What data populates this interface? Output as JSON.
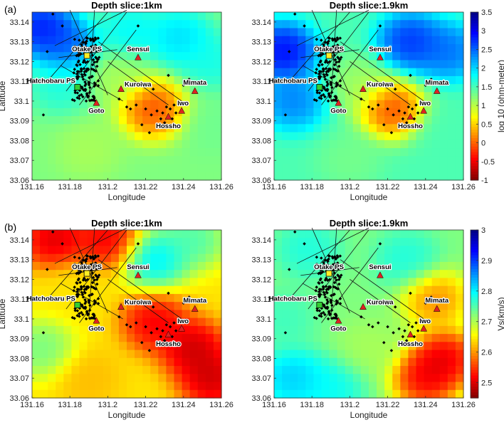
{
  "figure": {
    "panel_labels": [
      "(a)",
      "(b)"
    ]
  },
  "chart_data": [
    {
      "type": "heatmap",
      "panel": "(a)",
      "title": "Depth slice:1km",
      "xlabel": "Longitude",
      "ylabel": "Latitude",
      "xlim": [
        131.16,
        131.26
      ],
      "ylim": [
        33.06,
        33.145
      ],
      "xticks": [
        "131.16",
        "131.18",
        "131.2",
        "131.22",
        "131.24",
        "131.26"
      ],
      "yticks": [
        "33.06",
        "33.07",
        "33.08",
        "33.09",
        "33.1",
        "33.11",
        "33.12",
        "33.13",
        "33.14"
      ],
      "colormap": "jet-reversed (low=red, high=blue)",
      "quantity": "log10 resistivity",
      "features": [
        {
          "x": 131.165,
          "y": 33.137,
          "level": 0.95
        },
        {
          "x": 131.178,
          "y": 33.128,
          "level": 0.85
        },
        {
          "x": 131.175,
          "y": 33.108,
          "level": 0.62
        },
        {
          "x": 131.212,
          "y": 33.135,
          "level": 0.66
        },
        {
          "x": 131.238,
          "y": 33.132,
          "level": 0.7
        },
        {
          "x": 131.255,
          "y": 33.12,
          "level": 0.63
        },
        {
          "x": 131.224,
          "y": 33.096,
          "level": 0.12
        },
        {
          "x": 131.204,
          "y": 33.112,
          "level": 0.45
        },
        {
          "x": 131.255,
          "y": 33.088,
          "level": 0.52
        },
        {
          "x": 131.19,
          "y": 33.075,
          "level": 0.45
        }
      ],
      "background_level": 0.5
    },
    {
      "type": "heatmap",
      "panel": "(a)",
      "title": "Depth slice:1.9km",
      "xlabel": "Longitude",
      "ylabel": "",
      "xlim": [
        131.16,
        131.26
      ],
      "ylim": [
        33.06,
        33.145
      ],
      "xticks": [
        "131.16",
        "131.18",
        "131.2",
        "131.22",
        "131.24",
        "131.26"
      ],
      "yticks": [
        "33.06",
        "33.07",
        "33.08",
        "33.09",
        "33.1",
        "33.11",
        "33.12",
        "33.13",
        "33.14"
      ],
      "colormap": "jet-reversed (low=red, high=blue)",
      "quantity": "log10 resistivity",
      "features": [
        {
          "x": 131.165,
          "y": 33.125,
          "level": 0.96
        },
        {
          "x": 131.17,
          "y": 33.1,
          "level": 0.8
        },
        {
          "x": 131.232,
          "y": 33.13,
          "level": 0.9
        },
        {
          "x": 131.252,
          "y": 33.125,
          "level": 0.82
        },
        {
          "x": 131.222,
          "y": 33.096,
          "level": 0.1
        },
        {
          "x": 131.205,
          "y": 33.108,
          "level": 0.45
        },
        {
          "x": 131.25,
          "y": 33.085,
          "level": 0.55
        },
        {
          "x": 131.2,
          "y": 33.07,
          "level": 0.5
        }
      ],
      "background_level": 0.55
    },
    {
      "type": "heatmap",
      "panel": "(b)",
      "title": "Depth slice:1km",
      "xlabel": "Longitude",
      "ylabel": "Latitude",
      "xlim": [
        131.16,
        131.26
      ],
      "ylim": [
        33.06,
        33.145
      ],
      "xticks": [
        "131.16",
        "131.18",
        "131.2",
        "131.22",
        "131.24",
        "131.26"
      ],
      "yticks": [
        "33.06",
        "33.07",
        "33.08",
        "33.09",
        "33.1",
        "33.11",
        "33.12",
        "33.13",
        "33.14"
      ],
      "colormap": "jet-reversed (low=red, high=blue)",
      "quantity": "Vs (km/s)",
      "features": [
        {
          "x": 131.172,
          "y": 33.14,
          "level": 0.02
        },
        {
          "x": 131.2,
          "y": 33.14,
          "level": 0.05
        },
        {
          "x": 131.245,
          "y": 33.085,
          "level": 0.0
        },
        {
          "x": 131.255,
          "y": 33.07,
          "level": 0.0
        },
        {
          "x": 131.225,
          "y": 33.098,
          "level": 0.05
        },
        {
          "x": 131.225,
          "y": 33.13,
          "level": 0.72
        },
        {
          "x": 131.245,
          "y": 33.14,
          "level": 0.6
        },
        {
          "x": 131.165,
          "y": 33.085,
          "level": 0.55
        },
        {
          "x": 131.19,
          "y": 33.07,
          "level": 0.3
        },
        {
          "x": 131.182,
          "y": 33.115,
          "level": 0.35
        }
      ],
      "background_level": 0.35
    },
    {
      "type": "heatmap",
      "panel": "(b)",
      "title": "Depth slice:1.9km",
      "xlabel": "Longitude",
      "ylabel": "",
      "xlim": [
        131.16,
        131.26
      ],
      "ylim": [
        33.06,
        33.145
      ],
      "xticks": [
        "131.16",
        "131.18",
        "131.2",
        "131.22",
        "131.24",
        "131.26"
      ],
      "yticks": [
        "33.06",
        "33.07",
        "33.08",
        "33.09",
        "33.1",
        "33.11",
        "33.12",
        "33.13",
        "33.14"
      ],
      "colormap": "jet-reversed (low=red, high=blue)",
      "quantity": "Vs (km/s)",
      "features": [
        {
          "x": 131.178,
          "y": 33.135,
          "level": 0.62
        },
        {
          "x": 131.165,
          "y": 33.1,
          "level": 0.58
        },
        {
          "x": 131.17,
          "y": 33.07,
          "level": 0.72
        },
        {
          "x": 131.19,
          "y": 33.065,
          "level": 0.65
        },
        {
          "x": 131.23,
          "y": 33.13,
          "level": 0.62
        },
        {
          "x": 131.25,
          "y": 33.08,
          "level": 0.0
        },
        {
          "x": 131.24,
          "y": 33.07,
          "level": 0.02
        },
        {
          "x": 131.245,
          "y": 33.11,
          "level": 0.2
        },
        {
          "x": 131.21,
          "y": 33.085,
          "level": 0.45
        }
      ],
      "background_level": 0.5
    }
  ],
  "colorbars": [
    {
      "label": "log 10 (ohm-meter)",
      "range": [
        -1,
        3.5
      ],
      "ticks": [
        "3.5",
        "3",
        "2.5",
        "2",
        "1.5",
        "1",
        "0.5",
        "0",
        "-0.5",
        "-1"
      ]
    },
    {
      "label": "Vs(km/s)",
      "range": [
        2.45,
        3.0
      ],
      "ticks": [
        "3",
        "2.9",
        "2.8",
        "2.7",
        "2.6",
        "2.5"
      ]
    }
  ],
  "places": [
    {
      "name": "Otake PS",
      "x": 131.189,
      "y": 33.123,
      "marker": "square",
      "color": "#ffee22"
    },
    {
      "name": "Hatchobaru PS",
      "x": 131.184,
      "y": 33.107,
      "marker": "square",
      "color": "#33cc33"
    },
    {
      "name": "Sensui",
      "x": 131.216,
      "y": 33.122,
      "marker": "triangle",
      "color": "#dd2222"
    },
    {
      "name": "Kuroiwa",
      "x": 131.207,
      "y": 33.106,
      "marker": "triangle",
      "color": "#dd2222"
    },
    {
      "name": "Mimata",
      "x": 131.246,
      "y": 33.105,
      "marker": "triangle",
      "color": "#dd2222"
    },
    {
      "name": "Goto",
      "x": 131.194,
      "y": 33.099,
      "marker": "triangle",
      "color": "#dd2222"
    },
    {
      "name": "Iwo",
      "x": 131.239,
      "y": 33.095,
      "marker": "triangle",
      "color": "#dd2222"
    },
    {
      "name": "Hossho",
      "x": 131.232,
      "y": 33.092,
      "marker": "triangle",
      "color": "#dd2222"
    }
  ],
  "faults": [
    [
      [
        131.172,
        33.128
      ],
      [
        131.21,
        33.146
      ]
    ],
    [
      [
        131.175,
        33.118
      ],
      [
        131.208,
        33.1
      ]
    ],
    [
      [
        131.168,
        33.11
      ],
      [
        131.2,
        33.145
      ]
    ],
    [
      [
        131.18,
        33.146
      ],
      [
        131.2,
        33.103
      ]
    ],
    [
      [
        131.193,
        33.146
      ],
      [
        131.19,
        33.1
      ]
    ],
    [
      [
        131.185,
        33.098
      ],
      [
        131.215,
        33.136
      ]
    ],
    [
      [
        131.174,
        33.122
      ],
      [
        131.205,
        33.126
      ]
    ],
    [
      [
        131.2,
        33.12
      ],
      [
        131.232,
        33.098
      ]
    ],
    [
      [
        131.195,
        33.13
      ],
      [
        131.242,
        33.098
      ]
    ],
    [
      [
        131.178,
        33.105
      ],
      [
        131.21,
        33.145
      ]
    ]
  ],
  "quakes": [
    [
      131.171,
      33.144
    ],
    [
      131.176,
      33.138
    ],
    [
      131.168,
      33.125
    ],
    [
      131.166,
      33.093
    ],
    [
      131.216,
      33.138
    ],
    [
      131.224,
      33.106
    ],
    [
      131.232,
      33.113
    ],
    [
      131.243,
      33.111
    ],
    [
      131.24,
      33.108
    ],
    [
      131.206,
      33.101
    ],
    [
      131.21,
      33.097
    ],
    [
      131.215,
      33.098
    ],
    [
      131.22,
      33.096
    ],
    [
      131.223,
      33.093
    ],
    [
      131.226,
      33.095
    ],
    [
      131.229,
      33.094
    ],
    [
      131.231,
      33.097
    ],
    [
      131.233,
      33.096
    ],
    [
      131.236,
      33.094
    ],
    [
      131.234,
      33.091
    ],
    [
      131.23,
      33.089
    ],
    [
      131.235,
      33.098
    ],
    [
      131.228,
      33.091
    ],
    [
      131.222,
      33.084
    ],
    [
      131.218,
      33.088
    ],
    [
      131.212,
      33.096
    ]
  ],
  "cluster": {
    "x": [
      131.18,
      131.197
    ],
    "y": [
      33.1,
      33.132
    ],
    "count": 140
  }
}
